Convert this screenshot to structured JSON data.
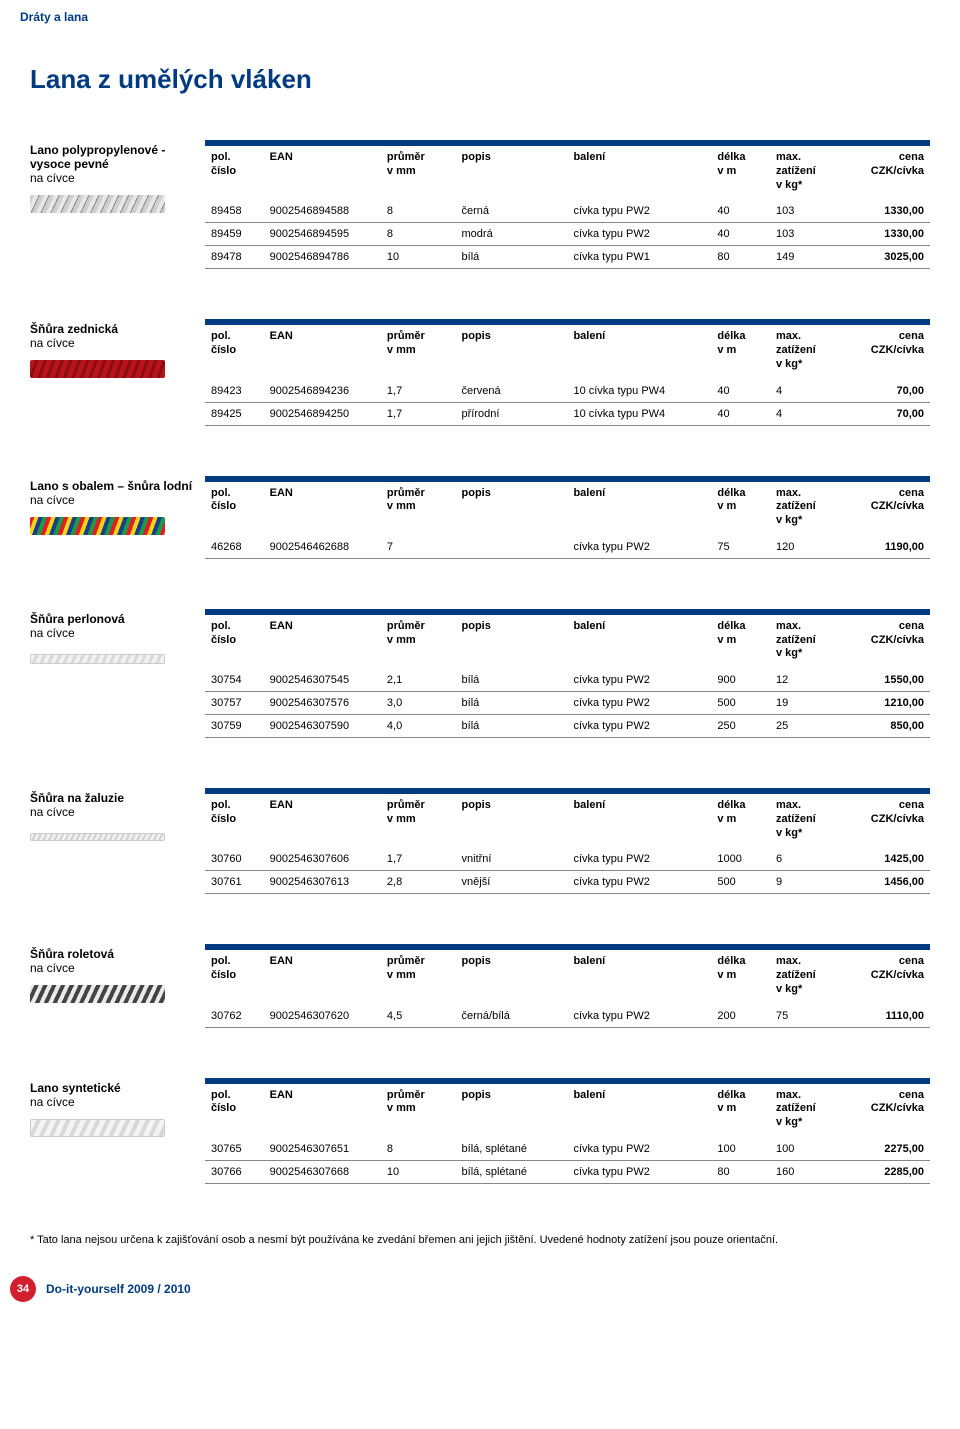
{
  "top_category": "Dráty a lana",
  "page_title": "Lana z umělých vláken",
  "columns": {
    "pol": "pol.\nčíslo",
    "ean": "EAN",
    "dia": "průměr\nv mm",
    "pop": "popis",
    "bal": "balení",
    "len": "délka\nv m",
    "max": "max.\nzatížení\nv kg*",
    "price": "cena\nCZK/cívka"
  },
  "sections": [
    {
      "label1": "Lano polypropylenové -",
      "label2": "vysoce pevné",
      "label3": "na cívce",
      "thumb": "rope-grey",
      "rows": [
        [
          "89458",
          "9002546894588",
          "8",
          "černá",
          "cívka typu PW2",
          "40",
          "103",
          "1330,00"
        ],
        [
          "89459",
          "9002546894595",
          "8",
          "modrá",
          "cívka typu PW2",
          "40",
          "103",
          "1330,00"
        ],
        [
          "89478",
          "9002546894786",
          "10",
          "bílá",
          "cívka typu PW1",
          "80",
          "149",
          "3025,00"
        ]
      ]
    },
    {
      "label1": "Šňůra zednická",
      "label3": "na cívce",
      "thumb": "rope-red",
      "rows": [
        [
          "89423",
          "9002546894236",
          "1,7",
          "červená",
          "10 cívka typu PW4",
          "40",
          "4",
          "70,00"
        ],
        [
          "89425",
          "9002546894250",
          "1,7",
          "přírodní",
          "10 cívka typu PW4",
          "40",
          "4",
          "70,00"
        ]
      ]
    },
    {
      "label1": "Lano s obalem – šnůra lodní",
      "label3": "na cívce",
      "thumb": "rope-multi",
      "rows": [
        [
          "46268",
          "9002546462688",
          "7",
          "",
          "cívka typu PW2",
          "75",
          "120",
          "1190,00"
        ]
      ]
    },
    {
      "label1": "Šňůra perlonová",
      "label3": "na cívce",
      "thumb": "rope-white",
      "rows": [
        [
          "30754",
          "9002546307545",
          "2,1",
          "bílá",
          "cívka typu PW2",
          "900",
          "12",
          "1550,00"
        ],
        [
          "30757",
          "9002546307576",
          "3,0",
          "bílá",
          "cívka typu PW2",
          "500",
          "19",
          "1210,00"
        ],
        [
          "30759",
          "9002546307590",
          "4,0",
          "bílá",
          "cívka typu PW2",
          "250",
          "25",
          "850,00"
        ]
      ]
    },
    {
      "label1": "Šňůra na žaluzie",
      "label3": "na cívce",
      "thumb": "rope-thin",
      "rows": [
        [
          "30760",
          "9002546307606",
          "1,7",
          "vnitřní",
          "cívka typu PW2",
          "1000",
          "6",
          "1425,00"
        ],
        [
          "30761",
          "9002546307613",
          "2,8",
          "vnější",
          "cívka typu PW2",
          "500",
          "9",
          "1456,00"
        ]
      ]
    },
    {
      "label1": "Šňůra roletová",
      "label3": "na cívce",
      "thumb": "rope-bw",
      "rows": [
        [
          "30762",
          "9002546307620",
          "4,5",
          "černá/bílá",
          "cívka typu PW2",
          "200",
          "75",
          "1110,00"
        ]
      ]
    },
    {
      "label1": "Lano syntetické",
      "label3": "na cívce",
      "thumb": "rope-white2",
      "rows": [
        [
          "30765",
          "9002546307651",
          "8",
          "bílá, splétané",
          "cívka typu PW2",
          "100",
          "100",
          "2275,00"
        ],
        [
          "30766",
          "9002546307668",
          "10",
          "bílá, splétané",
          "cívka typu PW2",
          "80",
          "160",
          "2285,00"
        ]
      ]
    }
  ],
  "footnote": "* Tato lana nejsou určena k zajišťování osob a nesmí být používána ke zvedání břemen ani jejich jištění. Uvedené hodnoty zatížení jsou pouze orientační.",
  "page_number": "34",
  "footer_text": "Do-it-yourself 2009 / 2010"
}
